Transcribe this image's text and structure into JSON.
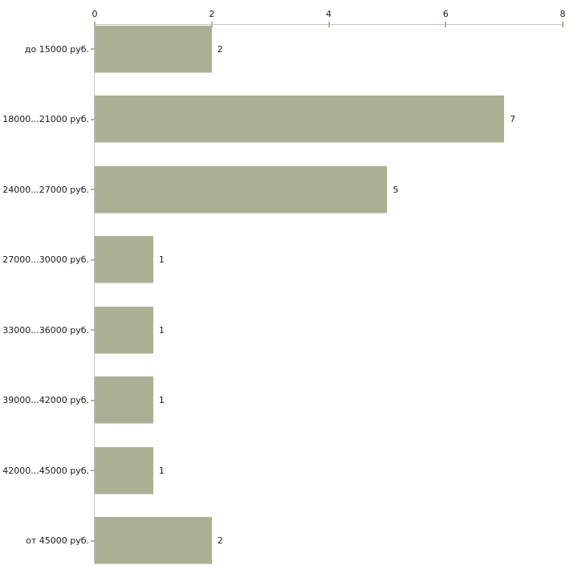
{
  "chart_data": {
    "type": "bar",
    "orientation": "horizontal",
    "title": "",
    "xlabel": "",
    "ylabel": "",
    "categories": [
      "до 15000 руб.",
      "18000...21000 руб.",
      "24000...27000 руб.",
      "27000...30000 руб.",
      "33000...36000 руб.",
      "39000...42000 руб.",
      "42000...45000 руб.",
      "от 45000 руб."
    ],
    "values": [
      2,
      7,
      5,
      1,
      1,
      1,
      1,
      2
    ],
    "value_labels": [
      "2",
      "7",
      "5",
      "1",
      "1",
      "1",
      "1",
      "2"
    ],
    "xlim": [
      0,
      8
    ],
    "x_ticks": [
      "0",
      "2",
      "4",
      "6",
      "8"
    ],
    "x_axis_position": "top",
    "grid": false,
    "legend": "none",
    "colors": {
      "bar_fill": "#abb095",
      "bar_bottom_edge": "#d6d6ce",
      "axis_line": "#c8c8c8",
      "tick_mark": "#b4b48b",
      "text": "#1a1a1a",
      "background": "#ffffff"
    }
  }
}
